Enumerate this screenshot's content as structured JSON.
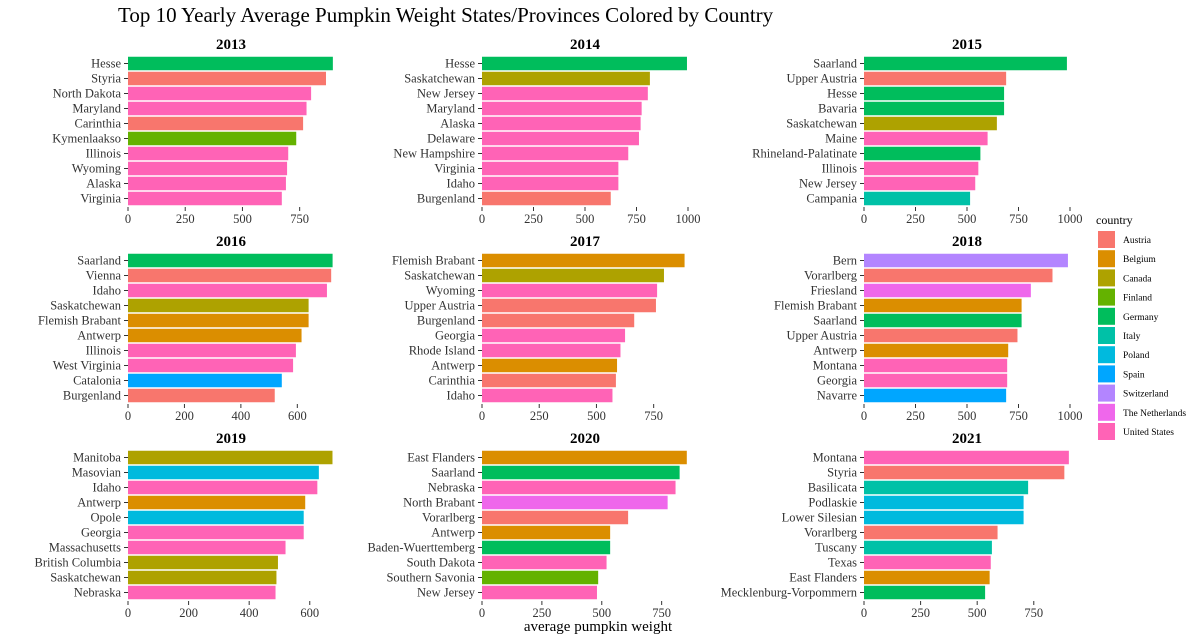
{
  "chart_data": {
    "type": "bar",
    "orientation": "horizontal",
    "title": "Top 10 Yearly Average Pumpkin Weight States/Provinces Colored by Country",
    "xlabel": "average pumpkin weight",
    "ylabel": "",
    "grid": false,
    "legend": {
      "title": "country",
      "placement": "right",
      "entries": [
        {
          "name": "Austria",
          "color": "#F8766D"
        },
        {
          "name": "Belgium",
          "color": "#DB8E00"
        },
        {
          "name": "Canada",
          "color": "#AEA200"
        },
        {
          "name": "Finland",
          "color": "#64B200"
        },
        {
          "name": "Germany",
          "color": "#00BD5C"
        },
        {
          "name": "Italy",
          "color": "#00C1A7"
        },
        {
          "name": "Poland",
          "color": "#00BADE"
        },
        {
          "name": "Spain",
          "color": "#00A6FF"
        },
        {
          "name": "Switzerland",
          "color": "#B385FF"
        },
        {
          "name": "The Netherlands",
          "color": "#EF67EB"
        },
        {
          "name": "United States",
          "color": "#FF63B6"
        }
      ]
    },
    "facets": [
      {
        "year": "2013",
        "xlim": [
          0,
          900
        ],
        "ticks": [
          "0",
          "250",
          "500",
          "750"
        ],
        "tick_values": [
          0,
          250,
          500,
          750
        ],
        "bars": [
          {
            "label": "Hesse",
            "value": 895,
            "country": "Germany"
          },
          {
            "label": "Styria",
            "value": 865,
            "country": "Austria"
          },
          {
            "label": "North Dakota",
            "value": 800,
            "country": "United States"
          },
          {
            "label": "Maryland",
            "value": 780,
            "country": "United States"
          },
          {
            "label": "Carinthia",
            "value": 765,
            "country": "Austria"
          },
          {
            "label": "Kymenlaakso",
            "value": 735,
            "country": "Finland"
          },
          {
            "label": "Illinois",
            "value": 700,
            "country": "United States"
          },
          {
            "label": "Wyoming",
            "value": 695,
            "country": "United States"
          },
          {
            "label": "Alaska",
            "value": 690,
            "country": "United States"
          },
          {
            "label": "Virginia",
            "value": 672,
            "country": "United States"
          }
        ]
      },
      {
        "year": "2014",
        "xlim": [
          0,
          1000
        ],
        "ticks": [
          "0",
          "250",
          "500",
          "750",
          "1000"
        ],
        "tick_values": [
          0,
          250,
          500,
          750,
          1000
        ],
        "bars": [
          {
            "label": "Hesse",
            "value": 995,
            "country": "Germany"
          },
          {
            "label": "Saskatchewan",
            "value": 815,
            "country": "Canada"
          },
          {
            "label": "New Jersey",
            "value": 805,
            "country": "United States"
          },
          {
            "label": "Maryland",
            "value": 775,
            "country": "United States"
          },
          {
            "label": "Alaska",
            "value": 770,
            "country": "United States"
          },
          {
            "label": "Delaware",
            "value": 762,
            "country": "United States"
          },
          {
            "label": "New Hampshire",
            "value": 710,
            "country": "United States"
          },
          {
            "label": "Virginia",
            "value": 662,
            "country": "United States"
          },
          {
            "label": "Idaho",
            "value": 662,
            "country": "United States"
          },
          {
            "label": "Burgenland",
            "value": 625,
            "country": "Austria"
          }
        ]
      },
      {
        "year": "2015",
        "xlim": [
          0,
          1000
        ],
        "ticks": [
          "0",
          "250",
          "500",
          "750",
          "1000"
        ],
        "tick_values": [
          0,
          250,
          500,
          750,
          1000
        ],
        "bars": [
          {
            "label": "Saarland",
            "value": 985,
            "country": "Germany"
          },
          {
            "label": "Upper Austria",
            "value": 690,
            "country": "Austria"
          },
          {
            "label": "Hesse",
            "value": 680,
            "country": "Germany"
          },
          {
            "label": "Bavaria",
            "value": 680,
            "country": "Germany"
          },
          {
            "label": "Saskatchewan",
            "value": 645,
            "country": "Canada"
          },
          {
            "label": "Maine",
            "value": 600,
            "country": "United States"
          },
          {
            "label": "Rhineland-Palatinate",
            "value": 565,
            "country": "Germany"
          },
          {
            "label": "Illinois",
            "value": 555,
            "country": "United States"
          },
          {
            "label": "New Jersey",
            "value": 540,
            "country": "United States"
          },
          {
            "label": "Campania",
            "value": 515,
            "country": "Italy"
          }
        ]
      },
      {
        "year": "2016",
        "xlim": [
          0,
          730
        ],
        "ticks": [
          "0",
          "200",
          "400",
          "600"
        ],
        "tick_values": [
          0,
          200,
          400,
          600
        ],
        "bars": [
          {
            "label": "Saarland",
            "value": 725,
            "country": "Germany"
          },
          {
            "label": "Vienna",
            "value": 720,
            "country": "Austria"
          },
          {
            "label": "Idaho",
            "value": 705,
            "country": "United States"
          },
          {
            "label": "Saskatchewan",
            "value": 640,
            "country": "Canada"
          },
          {
            "label": "Flemish Brabant",
            "value": 640,
            "country": "Belgium"
          },
          {
            "label": "Antwerp",
            "value": 615,
            "country": "Belgium"
          },
          {
            "label": "Illinois",
            "value": 595,
            "country": "United States"
          },
          {
            "label": "West Virginia",
            "value": 585,
            "country": "United States"
          },
          {
            "label": "Catalonia",
            "value": 545,
            "country": "Spain"
          },
          {
            "label": "Burgenland",
            "value": 520,
            "country": "Austria"
          }
        ]
      },
      {
        "year": "2017",
        "xlim": [
          0,
          900
        ],
        "ticks": [
          "0",
          "250",
          "500",
          "750"
        ],
        "tick_values": [
          0,
          250,
          500,
          750
        ],
        "bars": [
          {
            "label": "Flemish Brabant",
            "value": 885,
            "country": "Belgium"
          },
          {
            "label": "Saskatchewan",
            "value": 795,
            "country": "Canada"
          },
          {
            "label": "Wyoming",
            "value": 765,
            "country": "United States"
          },
          {
            "label": "Upper Austria",
            "value": 760,
            "country": "Austria"
          },
          {
            "label": "Burgenland",
            "value": 665,
            "country": "Austria"
          },
          {
            "label": "Georgia",
            "value": 625,
            "country": "United States"
          },
          {
            "label": "Rhode Island",
            "value": 605,
            "country": "United States"
          },
          {
            "label": "Antwerp",
            "value": 590,
            "country": "Belgium"
          },
          {
            "label": "Carinthia",
            "value": 585,
            "country": "Austria"
          },
          {
            "label": "Idaho",
            "value": 570,
            "country": "United States"
          }
        ]
      },
      {
        "year": "2018",
        "xlim": [
          0,
          1000
        ],
        "ticks": [
          "0",
          "250",
          "500",
          "750",
          "1000"
        ],
        "tick_values": [
          0,
          250,
          500,
          750,
          1000
        ],
        "bars": [
          {
            "label": "Bern",
            "value": 990,
            "country": "Switzerland"
          },
          {
            "label": "Vorarlberg",
            "value": 915,
            "country": "Austria"
          },
          {
            "label": "Friesland",
            "value": 810,
            "country": "The Netherlands"
          },
          {
            "label": "Flemish Brabant",
            "value": 765,
            "country": "Belgium"
          },
          {
            "label": "Saarland",
            "value": 765,
            "country": "Germany"
          },
          {
            "label": "Upper Austria",
            "value": 745,
            "country": "Austria"
          },
          {
            "label": "Antwerp",
            "value": 700,
            "country": "Belgium"
          },
          {
            "label": "Montana",
            "value": 695,
            "country": "United States"
          },
          {
            "label": "Georgia",
            "value": 695,
            "country": "United States"
          },
          {
            "label": "Navarre",
            "value": 690,
            "country": "Spain"
          }
        ]
      },
      {
        "year": "2019",
        "xlim": [
          0,
          680
        ],
        "ticks": [
          "0",
          "200",
          "400",
          "600"
        ],
        "tick_values": [
          0,
          200,
          400,
          600
        ],
        "bars": [
          {
            "label": "Manitoba",
            "value": 675,
            "country": "Canada"
          },
          {
            "label": "Masovian",
            "value": 630,
            "country": "Poland"
          },
          {
            "label": "Idaho",
            "value": 625,
            "country": "United States"
          },
          {
            "label": "Antwerp",
            "value": 585,
            "country": "Belgium"
          },
          {
            "label": "Opole",
            "value": 580,
            "country": "Poland"
          },
          {
            "label": "Georgia",
            "value": 580,
            "country": "United States"
          },
          {
            "label": "Massachusetts",
            "value": 520,
            "country": "United States"
          },
          {
            "label": "British Columbia",
            "value": 495,
            "country": "Canada"
          },
          {
            "label": "Saskatchewan",
            "value": 490,
            "country": "Canada"
          },
          {
            "label": "Nebraska",
            "value": 487,
            "country": "United States"
          }
        ]
      },
      {
        "year": "2020",
        "xlim": [
          0,
          860
        ],
        "ticks": [
          "0",
          "250",
          "500",
          "750"
        ],
        "tick_values": [
          0,
          250,
          500,
          750
        ],
        "bars": [
          {
            "label": "East Flanders",
            "value": 855,
            "country": "Belgium"
          },
          {
            "label": "Saarland",
            "value": 825,
            "country": "Germany"
          },
          {
            "label": "Nebraska",
            "value": 808,
            "country": "United States"
          },
          {
            "label": "North Brabant",
            "value": 775,
            "country": "The Netherlands"
          },
          {
            "label": "Vorarlberg",
            "value": 610,
            "country": "Austria"
          },
          {
            "label": "Antwerp",
            "value": 535,
            "country": "Belgium"
          },
          {
            "label": "Baden-Wuerttemberg",
            "value": 535,
            "country": "Germany"
          },
          {
            "label": "South Dakota",
            "value": 520,
            "country": "United States"
          },
          {
            "label": "Southern Savonia",
            "value": 485,
            "country": "Finland"
          },
          {
            "label": "New Jersey",
            "value": 480,
            "country": "United States"
          }
        ]
      },
      {
        "year": "2021",
        "xlim": [
          0,
          910
        ],
        "ticks": [
          "0",
          "250",
          "500",
          "750"
        ],
        "tick_values": [
          0,
          250,
          500,
          750
        ],
        "bars": [
          {
            "label": "Montana",
            "value": 905,
            "country": "United States"
          },
          {
            "label": "Styria",
            "value": 885,
            "country": "Austria"
          },
          {
            "label": "Basilicata",
            "value": 725,
            "country": "Italy"
          },
          {
            "label": "Podlaskie",
            "value": 705,
            "country": "Poland"
          },
          {
            "label": "Lower Silesian",
            "value": 705,
            "country": "Poland"
          },
          {
            "label": "Vorarlberg",
            "value": 590,
            "country": "Austria"
          },
          {
            "label": "Tuscany",
            "value": 565,
            "country": "Italy"
          },
          {
            "label": "Texas",
            "value": 560,
            "country": "United States"
          },
          {
            "label": "East Flanders",
            "value": 555,
            "country": "Belgium"
          },
          {
            "label": "Mecklenburg-Vorpommern",
            "value": 535,
            "country": "Germany"
          }
        ]
      }
    ]
  }
}
